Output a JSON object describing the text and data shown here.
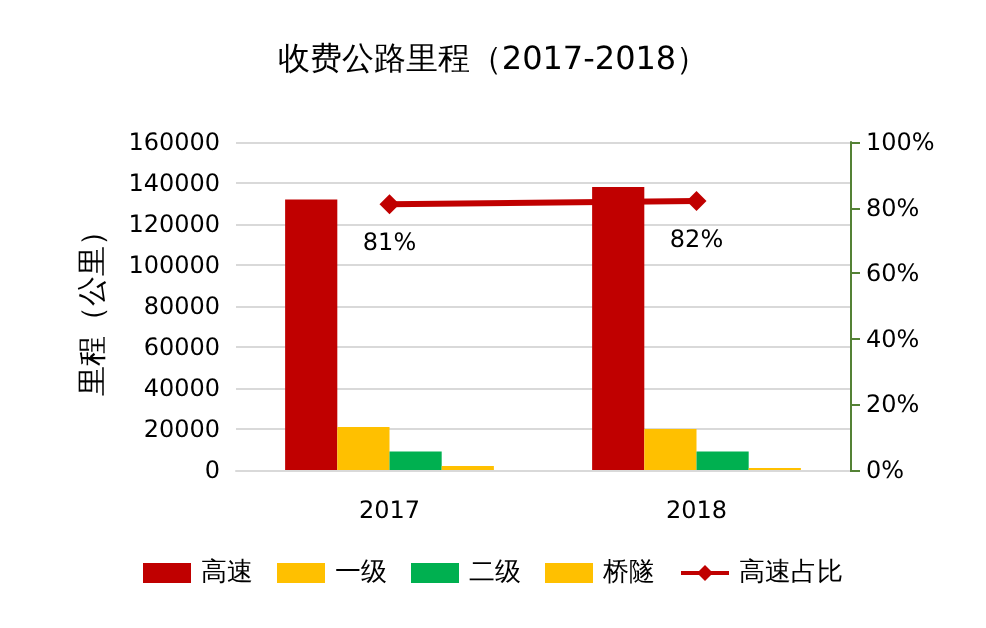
{
  "chart_data": {
    "type": "bar",
    "title": "收费公路里程（2017-2018）",
    "ylabel": "里程（公里）",
    "categories": [
      "2017",
      "2018"
    ],
    "series": [
      {
        "name": "高速",
        "color": "#c00000",
        "values": [
          132000,
          138000
        ]
      },
      {
        "name": "一级",
        "color": "#ffc000",
        "values": [
          21000,
          20000
        ]
      },
      {
        "name": "二级",
        "color": "#00b050",
        "values": [
          9000,
          9000
        ]
      },
      {
        "name": "桥隧",
        "color": "#ffc000",
        "values": [
          2000,
          1000
        ]
      },
      {
        "name": "高速占比",
        "type": "line",
        "axis": "y2",
        "color": "#c00000",
        "values": [
          81,
          82
        ],
        "value_labels": [
          "81%",
          "82%"
        ]
      }
    ],
    "ylim": [
      0,
      160000
    ],
    "yticks": [
      0,
      20000,
      40000,
      60000,
      80000,
      100000,
      120000,
      140000,
      160000
    ],
    "y2lim": [
      0,
      100
    ],
    "y2ticks": [
      {
        "value": 0,
        "label": "0%"
      },
      {
        "value": 20,
        "label": "20%"
      },
      {
        "value": 40,
        "label": "40%"
      },
      {
        "value": 60,
        "label": "60%"
      },
      {
        "value": 80,
        "label": "80%"
      },
      {
        "value": 100,
        "label": "100%"
      }
    ],
    "grid": "y",
    "legend": "bottom",
    "marker": "diamond"
  }
}
